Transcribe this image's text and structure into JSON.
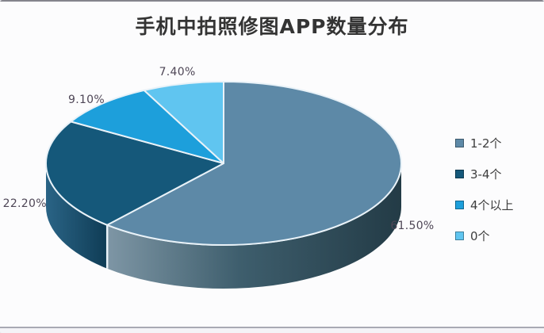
{
  "chart_data": {
    "type": "pie",
    "style": "3d",
    "title": "手机中拍照修图APP数量分布",
    "categories": [
      "1-2个",
      "3-4个",
      "4个以上",
      "0个"
    ],
    "values": [
      61.5,
      22.2,
      9.1,
      7.4
    ],
    "labels": [
      "61.50%",
      "22.20%",
      "9.10%",
      "7.40%"
    ],
    "unit": "%",
    "start_angle_deg": 0,
    "direction": "clockwise",
    "legend_position": "right",
    "grid": false,
    "colors": [
      "#5d89a7",
      "#15587a",
      "#1d9fdb",
      "#60c5f0"
    ],
    "side_gradients": [
      [
        [
          "0",
          "#7e96a5"
        ],
        [
          "0.45",
          "#3e5e6d"
        ],
        [
          "1",
          "#233b46"
        ]
      ],
      [
        [
          "0",
          "#2a6486"
        ],
        [
          "1",
          "#0f3c55"
        ]
      ],
      [
        [
          "0",
          "#127099"
        ],
        [
          "1",
          "#0c5c80"
        ]
      ],
      [
        [
          "0",
          "#3da5d4"
        ],
        [
          "1",
          "#2b90c0"
        ]
      ]
    ],
    "separator_color": "#e9f2f8",
    "front_edge_color": "#c9dde9",
    "label_color": "#4e4656",
    "legend_text_color": "#3d3d3d",
    "title_color": "#343434",
    "background": "#fcfcfd"
  }
}
